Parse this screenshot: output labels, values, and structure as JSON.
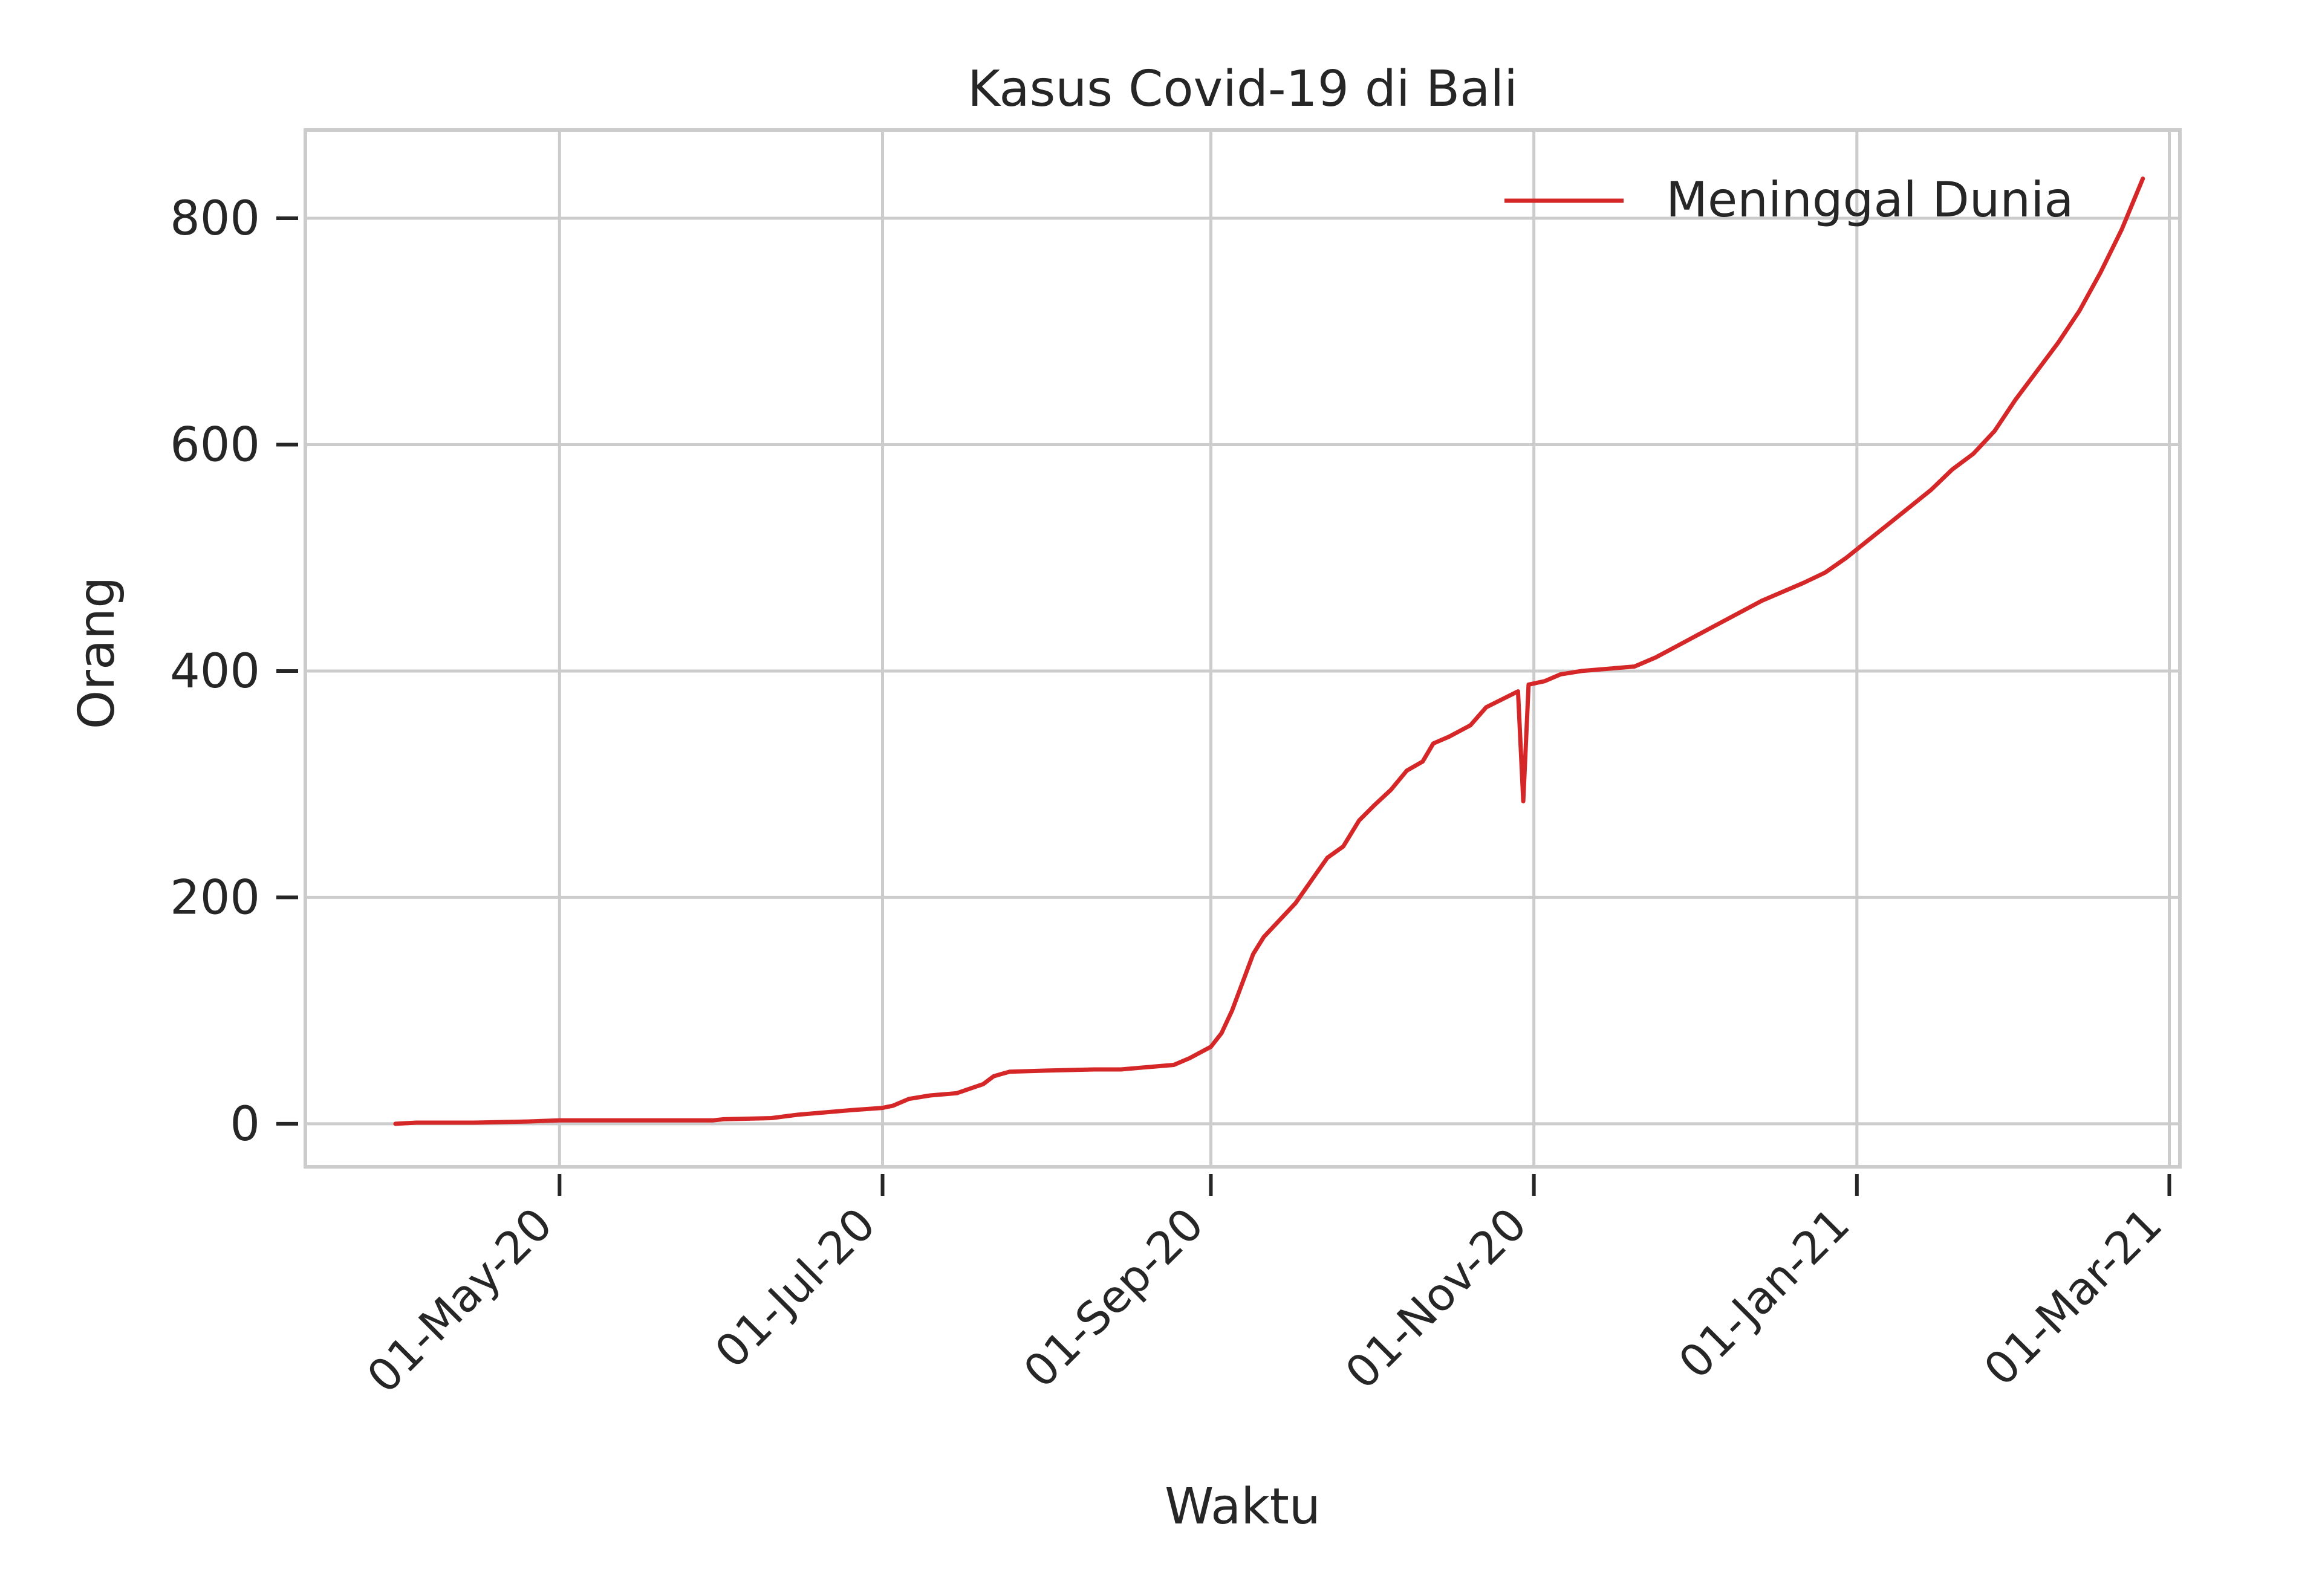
{
  "chart_data": {
    "type": "line",
    "title": "Kasus Covid-19 di Bali",
    "xlabel": "Waktu",
    "ylabel": "Orang",
    "xlim": [
      "2020-03-14",
      "2021-03-03"
    ],
    "ylim": [
      -38,
      878
    ],
    "x_tick_labels": [
      "01-May-20",
      "01-Jul-20",
      "01-Sep-20",
      "01-Nov-20",
      "01-Jan-21",
      "01-Mar-21"
    ],
    "x_tick_dates": [
      "2020-05-01",
      "2020-07-01",
      "2020-09-01",
      "2020-11-01",
      "2021-01-01",
      "2021-03-01"
    ],
    "y_ticks": [
      0,
      200,
      400,
      600,
      800
    ],
    "y_tick_labels": [
      "0",
      "200",
      "400",
      "600",
      "800"
    ],
    "grid": true,
    "legend_position": "top-right",
    "series": [
      {
        "name": "Meninggal Dunia",
        "color": "#d62728",
        "points": [
          [
            "2020-03-31",
            0
          ],
          [
            "2020-04-04",
            1
          ],
          [
            "2020-04-15",
            1
          ],
          [
            "2020-04-25",
            2
          ],
          [
            "2020-05-01",
            3
          ],
          [
            "2020-05-15",
            3
          ],
          [
            "2020-05-30",
            3
          ],
          [
            "2020-06-01",
            4
          ],
          [
            "2020-06-10",
            5
          ],
          [
            "2020-06-15",
            8
          ],
          [
            "2020-06-20",
            10
          ],
          [
            "2020-06-25",
            12
          ],
          [
            "2020-07-01",
            14
          ],
          [
            "2020-07-03",
            16
          ],
          [
            "2020-07-06",
            22
          ],
          [
            "2020-07-10",
            25
          ],
          [
            "2020-07-15",
            27
          ],
          [
            "2020-07-20",
            35
          ],
          [
            "2020-07-22",
            42
          ],
          [
            "2020-07-25",
            46
          ],
          [
            "2020-08-01",
            47
          ],
          [
            "2020-08-10",
            48
          ],
          [
            "2020-08-15",
            48
          ],
          [
            "2020-08-20",
            50
          ],
          [
            "2020-08-25",
            52
          ],
          [
            "2020-08-28",
            58
          ],
          [
            "2020-09-01",
            68
          ],
          [
            "2020-09-03",
            80
          ],
          [
            "2020-09-05",
            100
          ],
          [
            "2020-09-07",
            125
          ],
          [
            "2020-09-09",
            150
          ],
          [
            "2020-09-11",
            165
          ],
          [
            "2020-09-14",
            180
          ],
          [
            "2020-09-17",
            195
          ],
          [
            "2020-09-20",
            215
          ],
          [
            "2020-09-23",
            235
          ],
          [
            "2020-09-26",
            245
          ],
          [
            "2020-09-29",
            268
          ],
          [
            "2020-10-02",
            282
          ],
          [
            "2020-10-05",
            295
          ],
          [
            "2020-10-08",
            312
          ],
          [
            "2020-10-11",
            320
          ],
          [
            "2020-10-13",
            336
          ],
          [
            "2020-10-16",
            342
          ],
          [
            "2020-10-20",
            352
          ],
          [
            "2020-10-23",
            368
          ],
          [
            "2020-10-26",
            375
          ],
          [
            "2020-10-29",
            382
          ],
          [
            "2020-10-30",
            285
          ],
          [
            "2020-10-31",
            388
          ],
          [
            "2020-11-03",
            391
          ],
          [
            "2020-11-06",
            397
          ],
          [
            "2020-11-10",
            400
          ],
          [
            "2020-11-15",
            402
          ],
          [
            "2020-11-20",
            404
          ],
          [
            "2020-11-24",
            412
          ],
          [
            "2020-11-28",
            422
          ],
          [
            "2020-12-02",
            432
          ],
          [
            "2020-12-06",
            442
          ],
          [
            "2020-12-10",
            452
          ],
          [
            "2020-12-14",
            462
          ],
          [
            "2020-12-18",
            470
          ],
          [
            "2020-12-22",
            478
          ],
          [
            "2020-12-26",
            487
          ],
          [
            "2020-12-30",
            500
          ],
          [
            "2021-01-03",
            515
          ],
          [
            "2021-01-07",
            530
          ],
          [
            "2021-01-11",
            545
          ],
          [
            "2021-01-15",
            560
          ],
          [
            "2021-01-19",
            578
          ],
          [
            "2021-01-23",
            592
          ],
          [
            "2021-01-27",
            612
          ],
          [
            "2021-01-31",
            640
          ],
          [
            "2021-02-04",
            665
          ],
          [
            "2021-02-08",
            690
          ],
          [
            "2021-02-12",
            718
          ],
          [
            "2021-02-16",
            752
          ],
          [
            "2021-02-20",
            790
          ],
          [
            "2021-02-24",
            835
          ]
        ]
      }
    ]
  }
}
